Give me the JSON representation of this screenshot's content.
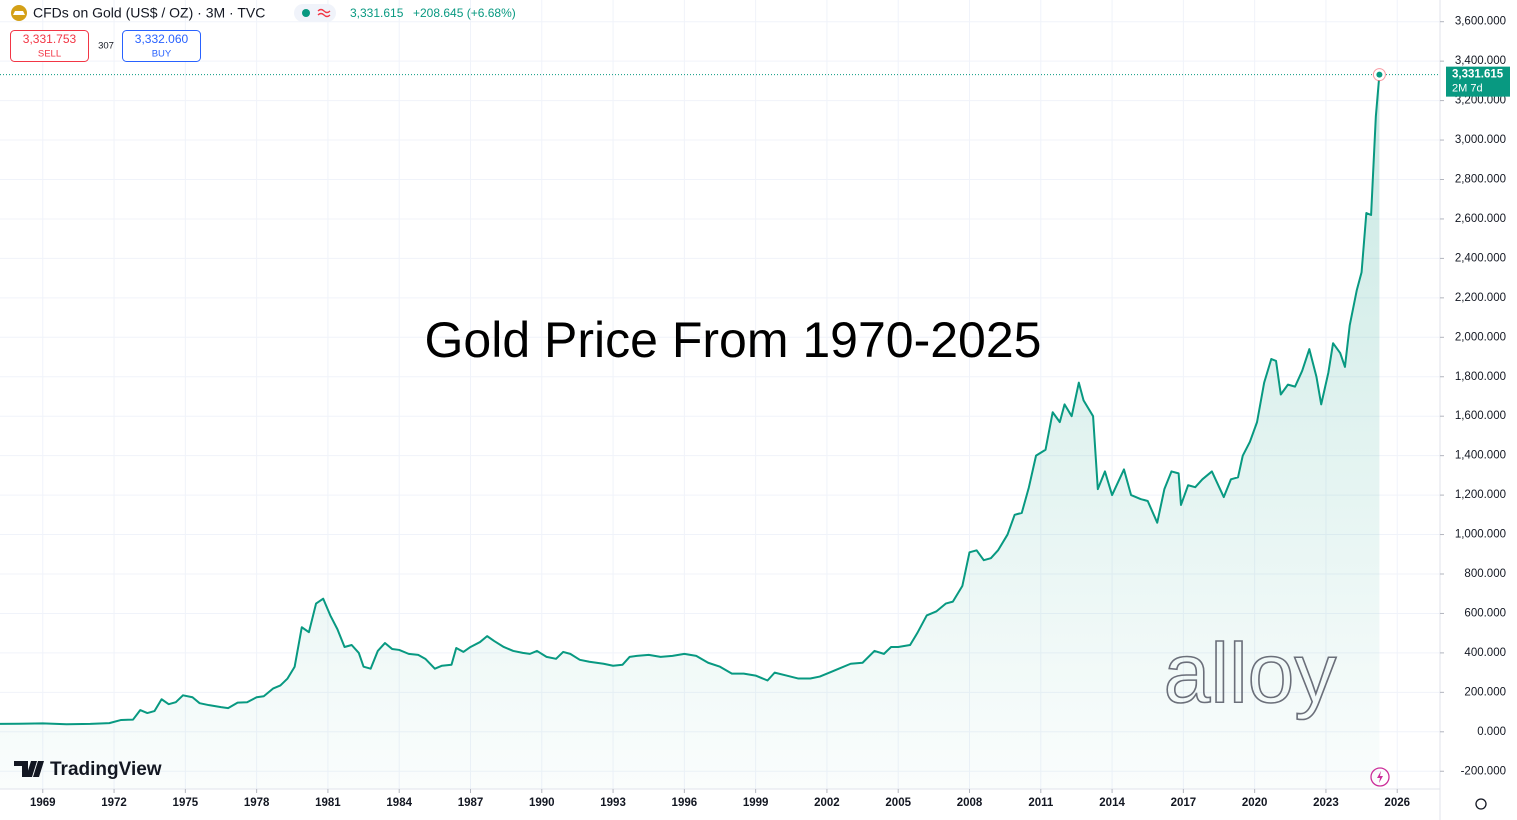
{
  "header": {
    "symbol": "CFDs on Gold (US$ / OZ) · 3M · TVC",
    "last": "3,331.615",
    "change": "+208.645 (+6.68%)",
    "sell_price": "3,331.753",
    "sell": "SELL",
    "spread": "307",
    "buy_price": "3,332.060",
    "buy": "BUY",
    "price_tag": "3,331.615",
    "countdown": "2M 7d",
    "logo": "TradingView",
    "watermark": "alloy"
  },
  "chart_data": {
    "type": "line",
    "title": "Gold Price From 1970-2025",
    "color": "#089981",
    "grid": true,
    "area": true,
    "x": [
      1967.2,
      1968,
      1969,
      1970,
      1971,
      1971.8,
      1972.3,
      1972.8,
      1973.1,
      1973.4,
      1973.7,
      1974.0,
      1974.3,
      1974.6,
      1974.9,
      1975.3,
      1975.6,
      1976.0,
      1976.5,
      1976.8,
      1977.2,
      1977.6,
      1978.0,
      1978.3,
      1978.7,
      1979.0,
      1979.3,
      1979.6,
      1979.9,
      1980.2,
      1980.5,
      1980.8,
      1981.1,
      1981.4,
      1981.7,
      1982.0,
      1982.3,
      1982.5,
      1982.8,
      1983.1,
      1983.4,
      1983.7,
      1984.0,
      1984.4,
      1984.8,
      1985.1,
      1985.5,
      1985.8,
      1986.2,
      1986.4,
      1986.7,
      1987.0,
      1987.4,
      1987.7,
      1988.0,
      1988.4,
      1988.8,
      1989.2,
      1989.5,
      1989.8,
      1990.2,
      1990.6,
      1990.9,
      1991.2,
      1991.6,
      1992.0,
      1992.6,
      1993.0,
      1993.4,
      1993.7,
      1994.0,
      1994.5,
      1995.0,
      1995.5,
      1996.0,
      1996.5,
      1997.0,
      1997.5,
      1998.0,
      1998.5,
      1999.0,
      1999.5,
      1999.8,
      2000.3,
      2000.8,
      2001.3,
      2001.7,
      2002.2,
      2002.5,
      2003.0,
      2003.5,
      2004.0,
      2004.4,
      2004.7,
      2005.0,
      2005.5,
      2005.8,
      2006.2,
      2006.6,
      2007.0,
      2007.3,
      2007.7,
      2008.0,
      2008.3,
      2008.6,
      2008.9,
      2009.2,
      2009.6,
      2009.9,
      2010.2,
      2010.5,
      2010.8,
      2011.2,
      2011.5,
      2011.8,
      2012.0,
      2012.3,
      2012.6,
      2012.8,
      2013.2,
      2013.4,
      2013.7,
      2014.0,
      2014.5,
      2014.8,
      2015.2,
      2015.5,
      2015.9,
      2016.2,
      2016.5,
      2016.8,
      2016.9,
      2017.2,
      2017.5,
      2017.8,
      2018.2,
      2018.7,
      2019.0,
      2019.3,
      2019.5,
      2019.8,
      2020.1,
      2020.4,
      2020.7,
      2020.9,
      2021.1,
      2021.4,
      2021.7,
      2022.0,
      2022.3,
      2022.6,
      2022.8,
      2023.1,
      2023.3,
      2023.6,
      2023.8,
      2024.0,
      2024.3,
      2024.5,
      2024.7,
      2024.9,
      2025.1,
      2025.25
    ],
    "values": [
      40,
      41,
      43,
      38,
      40,
      44,
      60,
      62,
      110,
      95,
      105,
      165,
      140,
      150,
      185,
      175,
      145,
      135,
      125,
      120,
      148,
      150,
      175,
      180,
      220,
      235,
      270,
      330,
      530,
      505,
      650,
      675,
      590,
      520,
      430,
      440,
      400,
      330,
      320,
      410,
      450,
      420,
      415,
      395,
      390,
      370,
      320,
      335,
      340,
      425,
      405,
      430,
      455,
      485,
      460,
      430,
      410,
      400,
      395,
      410,
      380,
      370,
      405,
      395,
      365,
      355,
      345,
      335,
      340,
      380,
      385,
      390,
      380,
      385,
      395,
      385,
      350,
      330,
      295,
      295,
      285,
      260,
      300,
      285,
      270,
      270,
      280,
      305,
      320,
      345,
      350,
      410,
      395,
      430,
      430,
      440,
      500,
      590,
      610,
      650,
      660,
      740,
      910,
      920,
      870,
      880,
      920,
      1000,
      1100,
      1110,
      1240,
      1400,
      1430,
      1620,
      1570,
      1660,
      1600,
      1770,
      1680,
      1600,
      1230,
      1320,
      1200,
      1330,
      1200,
      1180,
      1170,
      1060,
      1230,
      1320,
      1310,
      1150,
      1250,
      1240,
      1280,
      1320,
      1190,
      1280,
      1290,
      1400,
      1470,
      1570,
      1770,
      1890,
      1880,
      1710,
      1760,
      1750,
      1830,
      1940,
      1800,
      1660,
      1820,
      1970,
      1920,
      1850,
      2060,
      2240,
      2330,
      2630,
      2620,
      3120,
      3331.615
    ],
    "xlim": [
      1967.2,
      2027.8
    ],
    "xticks": [
      1969,
      1972,
      1975,
      1978,
      1981,
      1984,
      1987,
      1990,
      1993,
      1996,
      1999,
      2002,
      2005,
      2008,
      2011,
      2014,
      2017,
      2020,
      2023,
      2026
    ],
    "ylim": [
      -290,
      3710
    ],
    "yticks": [
      {
        "value": -200,
        "label": "-200.000"
      },
      {
        "value": 0,
        "label": "0.000"
      },
      {
        "value": 200,
        "label": "200.000"
      },
      {
        "value": 400,
        "label": "400.000"
      },
      {
        "value": 600,
        "label": "600.000"
      },
      {
        "value": 800,
        "label": "800.000"
      },
      {
        "value": 1000,
        "label": "1,000.000"
      },
      {
        "value": 1200,
        "label": "1,200.000"
      },
      {
        "value": 1400,
        "label": "1,400.000"
      },
      {
        "value": 1600,
        "label": "1,600.000"
      },
      {
        "value": 1800,
        "label": "1,800.000"
      },
      {
        "value": 2000,
        "label": "2,000.000"
      },
      {
        "value": 2200,
        "label": "2,200.000"
      },
      {
        "value": 2400,
        "label": "2,400.000"
      },
      {
        "value": 2600,
        "label": "2,600.000"
      },
      {
        "value": 2800,
        "label": "2,800.000"
      },
      {
        "value": 3000,
        "label": "3,000.000"
      },
      {
        "value": 3200,
        "label": "3,200.000"
      },
      {
        "value": 3400,
        "label": "3,400.000"
      },
      {
        "value": 3600,
        "label": "3,600.000"
      }
    ]
  }
}
